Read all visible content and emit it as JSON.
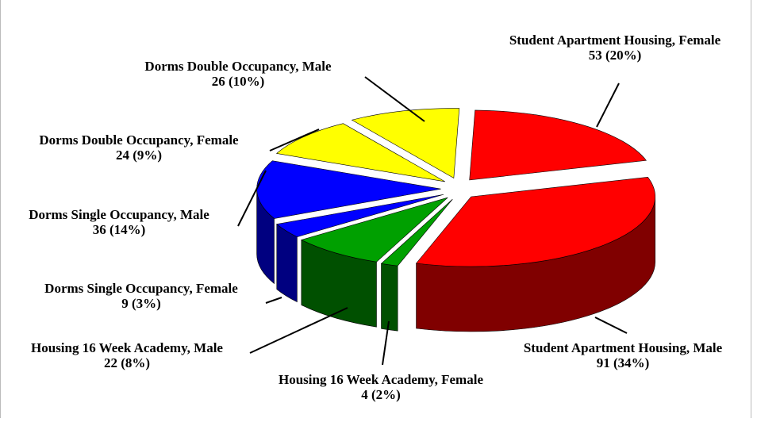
{
  "chart_data": {
    "type": "pie",
    "categories": [
      "Student Apartment Housing, Female",
      "Student Apartment Housing, Male",
      "Housing 16 Week Academy, Female",
      "Housing 16 Week Academy, Male",
      "Dorms Single Occupancy, Female",
      "Dorms Single Occupancy, Male",
      "Dorms Double Occupancy, Female",
      "Dorms Double Occupancy, Male"
    ],
    "values": [
      53,
      91,
      4,
      22,
      9,
      36,
      24,
      26
    ],
    "value_labels": [
      "53 (20%)",
      "91 (34%)",
      "4 (2%)",
      "22 (8%)",
      "9 (3%)",
      "36 (14%)",
      "24 (9%)",
      "26 (10%)"
    ],
    "colors": [
      "#ff0000",
      "#ff0000",
      "#00a000",
      "#00a000",
      "#0000ff",
      "#0000ff",
      "#ffff00",
      "#ffff00"
    ]
  }
}
